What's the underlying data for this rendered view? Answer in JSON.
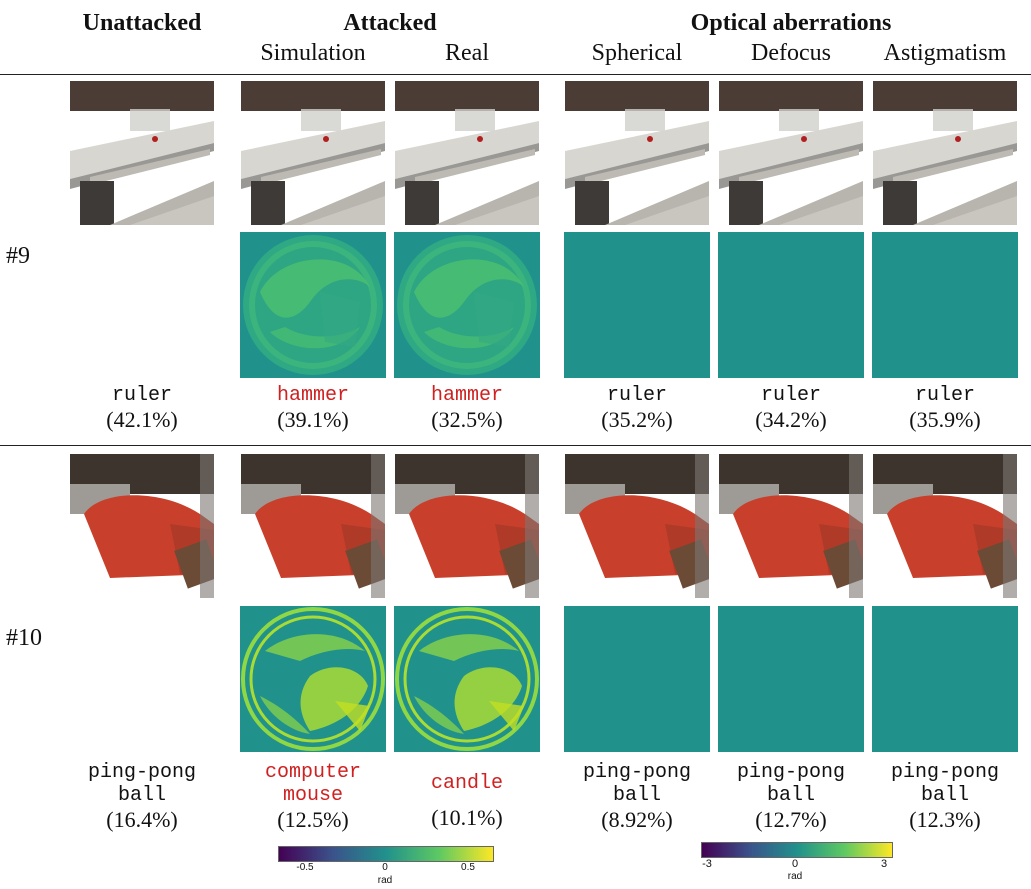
{
  "headers": {
    "unattacked": "Unattacked",
    "attacked": "Attacked",
    "optical": "Optical aberrations",
    "simulation": "Simulation",
    "real": "Real",
    "spherical": "Spherical",
    "defocus": "Defocus",
    "astigmatism": "Astigmatism"
  },
  "rows": [
    {
      "label": "#9",
      "preds": [
        {
          "cls": "ruler",
          "pct": "(42.1%)",
          "red": false
        },
        {
          "cls": "hammer",
          "pct": "(39.1%)",
          "red": true
        },
        {
          "cls": "hammer",
          "pct": "(32.5%)",
          "red": true
        },
        {
          "cls": "ruler",
          "pct": "(35.2%)",
          "red": false
        },
        {
          "cls": "ruler",
          "pct": "(34.2%)",
          "red": false
        },
        {
          "cls": "ruler",
          "pct": "(35.9%)",
          "red": false
        }
      ]
    },
    {
      "label": "#10",
      "preds": [
        {
          "cls": "ping-pong\nball",
          "pct": "(16.4%)",
          "red": false
        },
        {
          "cls": "computer\nmouse",
          "pct": "(12.5%)",
          "red": true
        },
        {
          "cls": "candle",
          "pct": "(10.1%)",
          "red": true
        },
        {
          "cls": "ping-pong\nball",
          "pct": "(8.92%)",
          "red": false
        },
        {
          "cls": "ping-pong\nball",
          "pct": "(12.7%)",
          "red": false
        },
        {
          "cls": "ping-pong\nball",
          "pct": "(12.3%)",
          "red": false
        }
      ]
    }
  ],
  "colorbars": [
    {
      "ticks": [
        "-0.5",
        "0",
        "0.5"
      ],
      "unit": "rad"
    },
    {
      "ticks": [
        "-3",
        "0",
        "3"
      ],
      "unit": "rad"
    }
  ],
  "colors": {
    "wrong_prediction": "#d02020",
    "phase_background": "#21918c"
  }
}
